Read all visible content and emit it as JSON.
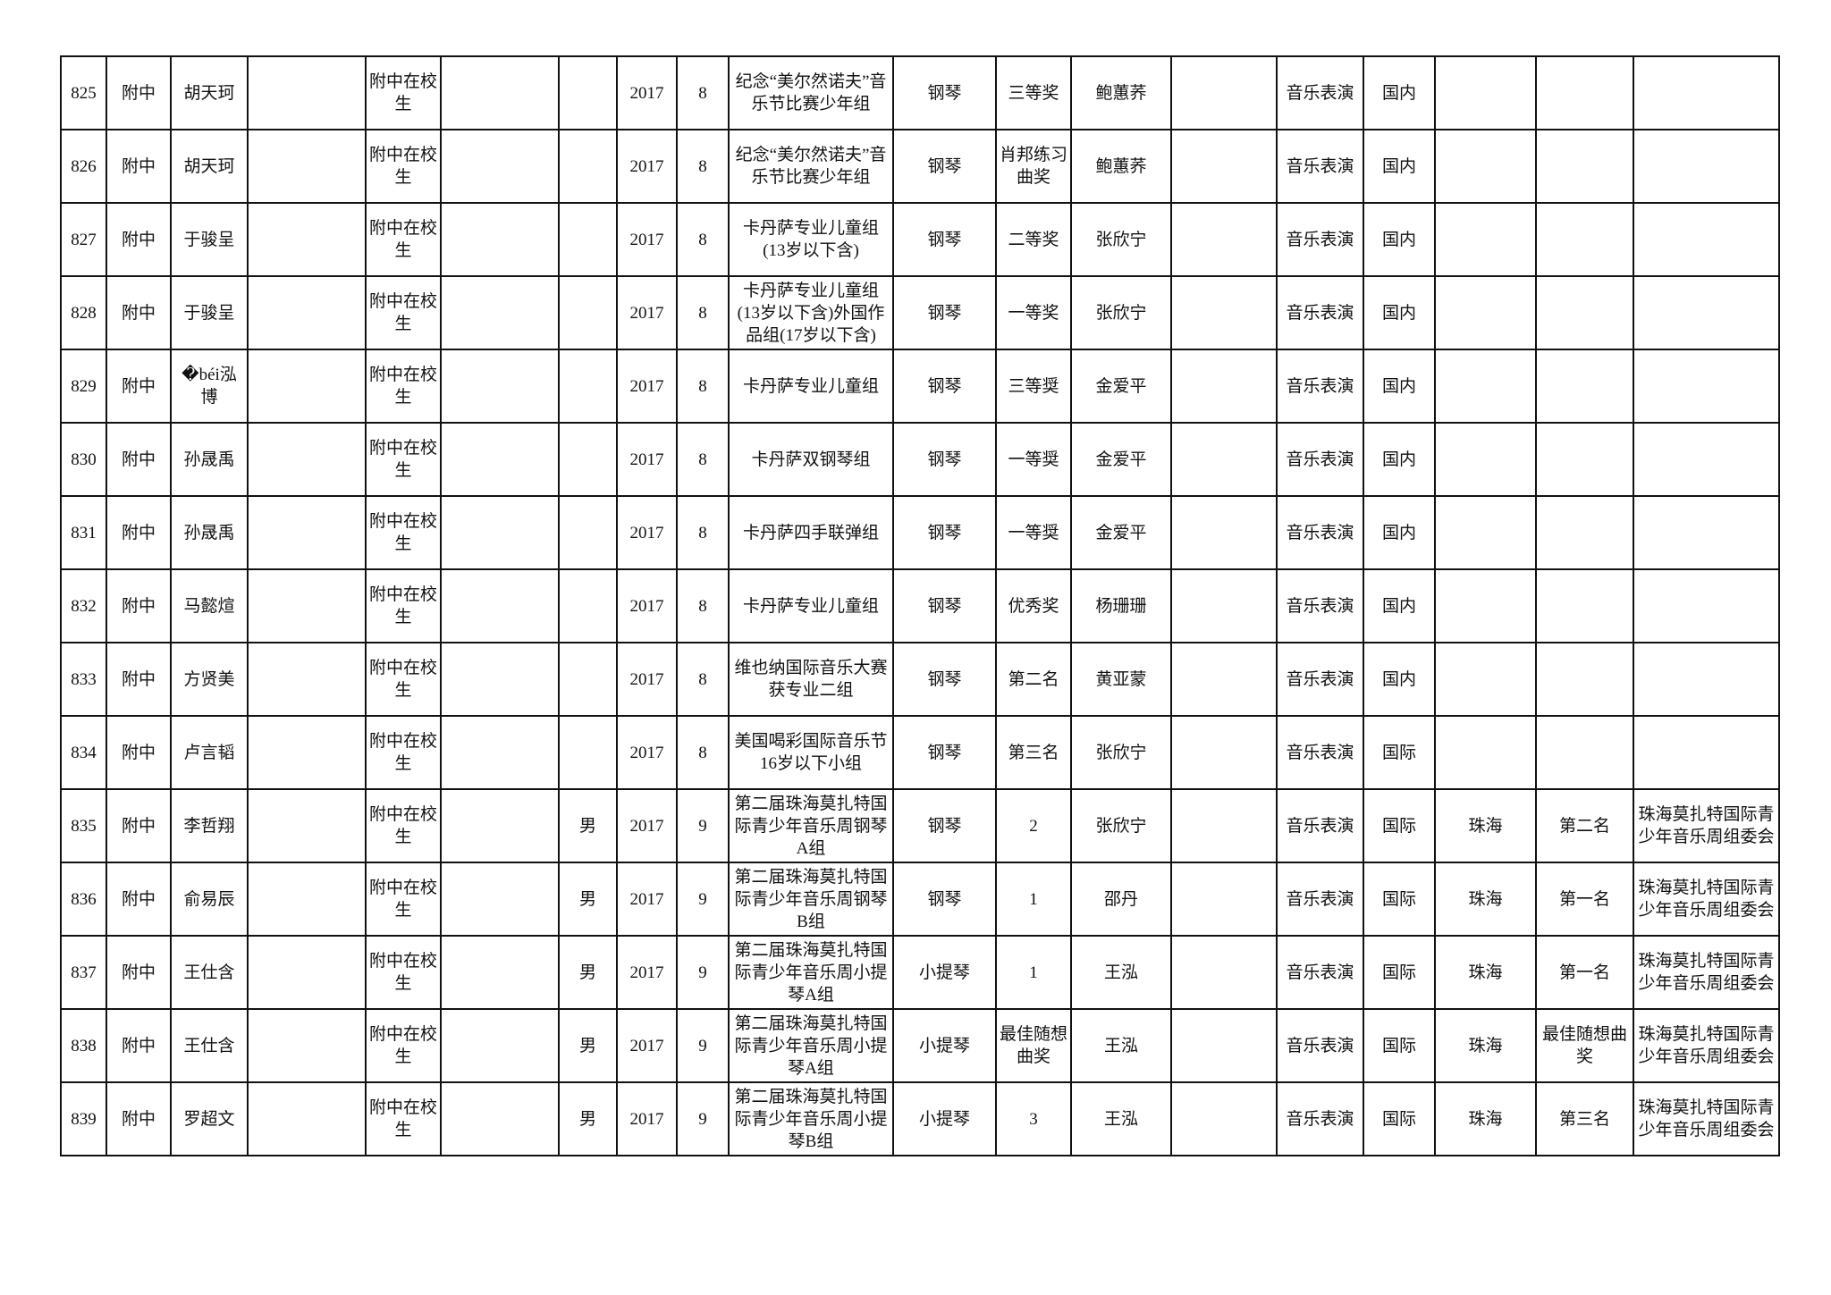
{
  "rows": [
    [
      "825",
      "附中",
      "胡天珂",
      "",
      "附中在校生",
      "",
      "",
      "2017",
      "8",
      "纪念“美尔然诺夫”音乐节比赛少年组",
      "钢琴",
      "三等奖",
      "鲍蕙荞",
      "",
      "音乐表演",
      "国内",
      "",
      "",
      ""
    ],
    [
      "826",
      "附中",
      "胡天珂",
      "",
      "附中在校生",
      "",
      "",
      "2017",
      "8",
      "纪念“美尔然诺夫”音乐节比赛少年组",
      "钢琴",
      "肖邦练习曲奖",
      "鲍蕙荞",
      "",
      "音乐表演",
      "国内",
      "",
      "",
      ""
    ],
    [
      "827",
      "附中",
      "于骏呈",
      "",
      "附中在校生",
      "",
      "",
      "2017",
      "8",
      "卡丹萨专业儿童组(13岁以下含)",
      "钢琴",
      "二等奖",
      "张欣宁",
      "",
      "音乐表演",
      "国内",
      "",
      "",
      ""
    ],
    [
      "828",
      "附中",
      "于骏呈",
      "",
      "附中在校生",
      "",
      "",
      "2017",
      "8",
      "卡丹萨专业儿童组(13岁以下含)外国作品组(17岁以下含)",
      "钢琴",
      "一等奖",
      "张欣宁",
      "",
      "音乐表演",
      "国内",
      "",
      "",
      ""
    ],
    [
      "829",
      "附中",
      "�béi泓博",
      "",
      "附中在校生",
      "",
      "",
      "2017",
      "8",
      "卡丹萨专业儿童组",
      "钢琴",
      "三等奨",
      "金爱平",
      "",
      "音乐表演",
      "国内",
      "",
      "",
      ""
    ],
    [
      "830",
      "附中",
      "孙晟禹",
      "",
      "附中在校生",
      "",
      "",
      "2017",
      "8",
      "卡丹萨双钢琴组",
      "钢琴",
      "一等奨",
      "金爱平",
      "",
      "音乐表演",
      "国内",
      "",
      "",
      ""
    ],
    [
      "831",
      "附中",
      "孙晟禹",
      "",
      "附中在校生",
      "",
      "",
      "2017",
      "8",
      "卡丹萨四手联弹组",
      "钢琴",
      "一等奨",
      "金爱平",
      "",
      "音乐表演",
      "国内",
      "",
      "",
      ""
    ],
    [
      "832",
      "附中",
      "马懿煊",
      "",
      "附中在校生",
      "",
      "",
      "2017",
      "8",
      "卡丹萨专业儿童组",
      "钢琴",
      "优秀奖",
      "杨珊珊",
      "",
      "音乐表演",
      "国内",
      "",
      "",
      ""
    ],
    [
      "833",
      "附中",
      "方贤美",
      "",
      "附中在校生",
      "",
      "",
      "2017",
      "8",
      "维也纳国际音乐大赛获专业二组",
      "钢琴",
      "第二名",
      "黄亚蒙",
      "",
      "音乐表演",
      "国内",
      "",
      "",
      ""
    ],
    [
      "834",
      "附中",
      "卢言韬",
      "",
      "附中在校生",
      "",
      "",
      "2017",
      "8",
      "美国喝彩国际音乐节16岁以下小组",
      "钢琴",
      "第三名",
      "张欣宁",
      "",
      "音乐表演",
      "国际",
      "",
      "",
      ""
    ],
    [
      "835",
      "附中",
      "李哲翔",
      "",
      "附中在校生",
      "",
      "男",
      "2017",
      "9",
      "第二届珠海莫扎特国际青少年音乐周钢琴A组",
      "钢琴",
      "2",
      "张欣宁",
      "",
      "音乐表演",
      "国际",
      "珠海",
      "第二名",
      "珠海莫扎特国际青少年音乐周组委会"
    ],
    [
      "836",
      "附中",
      "俞易辰",
      "",
      "附中在校生",
      "",
      "男",
      "2017",
      "9",
      "第二届珠海莫扎特国际青少年音乐周钢琴B组",
      "钢琴",
      "1",
      "邵丹",
      "",
      "音乐表演",
      "国际",
      "珠海",
      "第一名",
      "珠海莫扎特国际青少年音乐周组委会"
    ],
    [
      "837",
      "附中",
      "王仕含",
      "",
      "附中在校生",
      "",
      "男",
      "2017",
      "9",
      "第二届珠海莫扎特国际青少年音乐周小提琴A组",
      "小提琴",
      "1",
      "王泓",
      "",
      "音乐表演",
      "国际",
      "珠海",
      "第一名",
      "珠海莫扎特国际青少年音乐周组委会"
    ],
    [
      "838",
      "附中",
      "王仕含",
      "",
      "附中在校生",
      "",
      "男",
      "2017",
      "9",
      "第二届珠海莫扎特国际青少年音乐周小提琴A组",
      "小提琴",
      "最佳随想曲奖",
      "王泓",
      "",
      "音乐表演",
      "国际",
      "珠海",
      "最佳随想曲奖",
      "珠海莫扎特国际青少年音乐周组委会"
    ],
    [
      "839",
      "附中",
      "罗超文",
      "",
      "附中在校生",
      "",
      "男",
      "2017",
      "9",
      "第二届珠海莫扎特国际青少年音乐周小提琴B组",
      "小提琴",
      "3",
      "王泓",
      "",
      "音乐表演",
      "国际",
      "珠海",
      "第三名",
      "珠海莫扎特国际青少年音乐周组委会"
    ]
  ]
}
